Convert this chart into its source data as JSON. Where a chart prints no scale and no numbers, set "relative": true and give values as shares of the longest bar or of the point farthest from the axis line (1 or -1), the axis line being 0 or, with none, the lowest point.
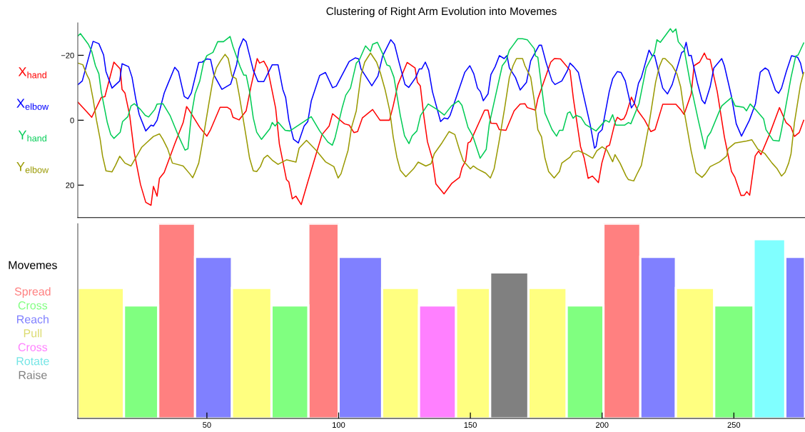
{
  "chart_data": [
    {
      "type": "line",
      "title": "Clustering of Right Arm Evolution into Movemes",
      "legend": "left",
      "line_style": "solid",
      "tick_labels": "y",
      "xlim": [
        1,
        277
      ],
      "ylim": [
        30,
        -30
      ],
      "yticks": [
        -20,
        0,
        20
      ],
      "series": [
        {
          "name": "X$_{hand}$",
          "color": "#ff0000",
          "x": [
            1.1,
            4.1,
            6.3,
            9.9,
            11.3,
            14.7,
            17.1,
            17.8,
            18.9,
            20.7,
            22.5,
            24.8,
            26.8,
            28.8,
            29.7,
            31.1,
            32.0,
            33.8,
            37.8,
            41.0,
            42.3,
            43.1,
            47.3,
            50.0,
            51.4,
            55.0,
            57.7,
            59.0,
            59.9,
            62.2,
            64.9,
            66.7,
            69.1,
            70.0,
            71.6,
            73.0,
            76.1,
            77.5,
            80.2,
            81.1,
            82.4,
            83.8,
            85.8,
            88.3,
            91.9,
            93.7,
            96.4,
            97.7,
            102.2,
            104.0,
            105.8,
            107.2,
            109.0,
            112.9,
            115.7,
            119.3,
            120.7,
            122.5,
            126.0,
            129.0,
            129.9,
            131.0,
            132.3,
            133.7,
            135.5,
            136.9,
            140.0,
            143.0,
            145.9,
            146.8,
            148.2,
            149.1,
            150.0,
            155.4,
            156.7,
            157.8,
            159.9,
            161.0,
            163.5,
            166.6,
            168.9,
            170.7,
            171.6,
            174.7,
            175.6,
            177.8,
            180.5,
            181.9,
            184.2,
            187.8,
            189.1,
            191.8,
            193.2,
            194.7,
            196.3,
            198.6,
            199.9,
            201.7,
            202.8,
            204.9,
            205.8,
            207.1,
            208.2,
            209.1,
            211.1,
            213.6,
            216.1,
            218.5,
            220.1,
            223.0,
            228.0,
            229.8,
            231.1,
            233.8,
            234.9,
            237.0,
            238.8,
            239.8,
            241.0,
            243.7,
            246.4,
            249.1,
            250.4,
            252.7,
            254.0,
            254.9,
            256.0,
            258.1,
            259.4,
            260.3,
            263.5,
            267.3,
            269.8,
            271.6,
            273.0,
            274.8,
            276.5
          ],
          "values": [
            -5.5,
            -2.9,
            -0.9,
            -7.0,
            -7.3,
            -17.9,
            -15.8,
            -9.5,
            -8.4,
            -1.5,
            10.3,
            19.8,
            25.3,
            26.2,
            20.4,
            23.4,
            17.9,
            16.1,
            7.3,
            0.7,
            -4.2,
            -3.3,
            2.2,
            4.9,
            2.9,
            -4.0,
            -4.0,
            -3.3,
            -0.9,
            -0.1,
            -2.9,
            -10.3,
            -19.0,
            -17.6,
            -18.2,
            -16.1,
            -3.7,
            7.3,
            18.3,
            19.0,
            24.2,
            23.4,
            26.0,
            19.0,
            9.2,
            4.4,
            1.8,
            -2.0,
            1.1,
            1.5,
            3.8,
            3.5,
            -0.7,
            -3.3,
            0.0,
            0.0,
            -4.4,
            -11.0,
            -17.8,
            -16.1,
            -11.7,
            -10.6,
            -1.5,
            6.6,
            11.7,
            19.6,
            22.7,
            19.4,
            17.6,
            14.7,
            12.5,
            7.0,
            6.6,
            -3.1,
            -3.1,
            0.9,
            1.0,
            2.9,
            3.1,
            -2.9,
            -5.0,
            -5.1,
            -3.9,
            -3.1,
            -6.6,
            -11.7,
            -17.9,
            -19.0,
            -18.9,
            -15.4,
            -6.6,
            8.1,
            11.7,
            17.9,
            17.2,
            19.2,
            13.2,
            8.1,
            7.7,
            0.7,
            -0.9,
            -0.1,
            -0.4,
            -1.8,
            -7.1,
            -2.9,
            -0.1,
            3.5,
            2.9,
            -4.9,
            -4.9,
            -3.3,
            -1.8,
            -8.1,
            -16.8,
            -17.9,
            -20.7,
            -18.9,
            -18.7,
            -8.8,
            5.1,
            15.8,
            17.6,
            23.2,
            23.1,
            22.0,
            23.1,
            11.0,
            9.5,
            10.6,
            4.4,
            -3.9,
            0.7,
            2.0,
            5.0,
            3.8,
            0.0
          ]
        },
        {
          "name": "X$_{elbow}$",
          "color": "#0000ff",
          "x": [
            1.1,
            2.7,
            6.8,
            9.0,
            10.8,
            11.7,
            14.0,
            16.9,
            17.8,
            20.3,
            21.6,
            23.0,
            24.3,
            26.8,
            28.8,
            29.7,
            31.1,
            33.8,
            35.1,
            37.8,
            39.2,
            41.4,
            42.8,
            44.1,
            46.9,
            48.2,
            50.0,
            51.4,
            52.7,
            55.7,
            59.0,
            61.3,
            62.2,
            63.8,
            64.9,
            67.6,
            69.4,
            71.6,
            74.8,
            77.0,
            78.8,
            79.9,
            81.1,
            82.9,
            84.7,
            86.9,
            88.3,
            89.6,
            92.8,
            95.0,
            97.7,
            99.1,
            104.0,
            106.3,
            107.6,
            108.5,
            112.6,
            114.9,
            116.7,
            119.8,
            121.2,
            123.0,
            125.2,
            126.6,
            129.3,
            130.6,
            131.5,
            132.9,
            134.2,
            135.6,
            138.7,
            140.1,
            141.4,
            142.3,
            147.9,
            149.8,
            151.3,
            152.7,
            153.8,
            154.9,
            156.7,
            157.8,
            159.4,
            161.0,
            162.8,
            163.9,
            164.8,
            167.1,
            168.9,
            171.3,
            172.9,
            176.1,
            177.0,
            178.8,
            181.0,
            182.1,
            184.7,
            186.9,
            187.8,
            189.2,
            191.0,
            195.5,
            197.1,
            197.7,
            198.6,
            200.0,
            202.7,
            204.0,
            205.8,
            207.2,
            208.8,
            211.1,
            212.2,
            213.8,
            214.9,
            217.8,
            219.0,
            219.9,
            223.0,
            224.8,
            226.6,
            230.2,
            231.0,
            231.9,
            232.9,
            233.8,
            236.1,
            237.9,
            239.0,
            241.0,
            242.4,
            245.4,
            246.4,
            249.1,
            250.9,
            252.9,
            255.9,
            258.2,
            260.0,
            261.9,
            263.1,
            265.8,
            267.0,
            268.1,
            269.9,
            271.9,
            274.2,
            275.3,
            276.2
          ],
          "values": [
            -11.0,
            -12.1,
            -24.3,
            -23.6,
            -20.1,
            -15.0,
            -9.9,
            -12.1,
            -17.4,
            -16.5,
            -13.2,
            -6.6,
            -1.8,
            3.3,
            1.5,
            1.8,
            0.0,
            -8.4,
            -11.0,
            -16.3,
            -15.0,
            -7.3,
            -6.6,
            -8.4,
            -17.8,
            -17.9,
            -18.9,
            -18.7,
            -13.9,
            -9.5,
            -11.1,
            -17.2,
            -22.0,
            -25.1,
            -24.2,
            -15.4,
            -11.9,
            -11.9,
            -17.1,
            -17.1,
            -9.5,
            -7.0,
            0.0,
            5.9,
            7.0,
            1.8,
            0.4,
            -5.9,
            -13.8,
            -14.7,
            -10.0,
            -10.5,
            -18.1,
            -19.2,
            -18.9,
            -15.8,
            -10.6,
            -13.6,
            -19.8,
            -24.8,
            -23.4,
            -17.6,
            -11.0,
            -10.1,
            -13.2,
            -15.8,
            -15.8,
            -17.9,
            -15.4,
            -8.8,
            0.4,
            -0.7,
            -0.4,
            -1.5,
            -14.8,
            -16.8,
            -14.3,
            -9.9,
            -8.8,
            -6.0,
            -8.1,
            -14.1,
            -16.5,
            -19.9,
            -19.0,
            -19.9,
            -16.1,
            -13.2,
            -9.3,
            -11.7,
            -18.3,
            -23.1,
            -23.1,
            -17.6,
            -12.1,
            -11.0,
            -12.1,
            -15.4,
            -17.6,
            -16.5,
            -14.7,
            1.5,
            8.6,
            8.1,
            4.0,
            2.9,
            -8.8,
            -12.8,
            -15.0,
            -14.7,
            -12.1,
            -3.8,
            -5.1,
            -11.4,
            -13.2,
            -21.6,
            -19.8,
            -20.0,
            -9.9,
            -8.1,
            -11.0,
            -20.9,
            -21.2,
            -24.0,
            -19.9,
            -20.0,
            -11.7,
            -6.2,
            -5.1,
            -10.3,
            -16.1,
            -19.0,
            -16.8,
            -7.3,
            1.1,
            4.9,
            0.0,
            -5.1,
            -14.8,
            -16.1,
            -15.4,
            -9.2,
            -8.3,
            -9.9,
            -15.0,
            -19.9,
            -19.4,
            -17.6,
            -14.3
          ]
        },
        {
          "name": "Y$_{hand}$",
          "color": "#00cc55",
          "x": [
            1.1,
            2.0,
            5.0,
            6.3,
            7.7,
            9.0,
            9.9,
            12.2,
            13.5,
            14.7,
            17.1,
            18.0,
            20.0,
            21.2,
            22.5,
            24.8,
            26.6,
            27.9,
            30.2,
            31.1,
            33.3,
            36.0,
            39.2,
            41.7,
            42.8,
            44.1,
            45.5,
            47.3,
            48.7,
            50.0,
            52.3,
            54.1,
            56.3,
            58.8,
            59.9,
            62.6,
            64.0,
            64.9,
            66.2,
            67.6,
            68.9,
            70.7,
            73.9,
            74.8,
            75.9,
            77.0,
            79.7,
            81.5,
            86.9,
            89.6,
            92.8,
            95.9,
            97.6,
            98.6,
            101.3,
            102.7,
            104.5,
            106.7,
            107.8,
            110.2,
            112.1,
            112.9,
            114.7,
            116.7,
            118.3,
            119.4,
            121.0,
            123.4,
            125.0,
            126.7,
            127.9,
            129.7,
            131.1,
            134.0,
            137.4,
            140.1,
            142.8,
            145.5,
            146.8,
            149.1,
            150.9,
            153.7,
            156.0,
            157.2,
            159.9,
            162.1,
            163.5,
            164.8,
            166.2,
            168.0,
            169.8,
            171.6,
            174.3,
            174.7,
            175.6,
            178.3,
            181.0,
            182.7,
            183.8,
            185.1,
            186.9,
            187.8,
            189.0,
            190.1,
            192.0,
            193.7,
            197.7,
            201.3,
            202.7,
            204.0,
            205.2,
            208.6,
            210.0,
            210.9,
            214.0,
            216.7,
            218.1,
            219.9,
            220.8,
            222.1,
            225.9,
            226.8,
            228.0,
            228.9,
            231.1,
            233.4,
            236.5,
            239.0,
            240.0,
            241.2,
            244.2,
            245.4,
            249.1,
            250.5,
            253.7,
            254.8,
            256.2,
            258.2,
            261.3,
            262.2,
            264.9,
            267.2,
            268.1,
            271.7,
            273.5,
            274.4,
            276.5
          ],
          "values": [
            -26.0,
            -26.7,
            -23.4,
            -21.2,
            -16.8,
            -14.3,
            -8.8,
            0.7,
            4.4,
            5.6,
            3.7,
            0.4,
            -1.1,
            -4.4,
            -5.1,
            -3.3,
            -1.5,
            -1.0,
            -3.3,
            -5.0,
            -5.1,
            -1.5,
            4.8,
            9.2,
            8.8,
            -1.5,
            -8.1,
            -12.1,
            -17.6,
            -19.9,
            -20.9,
            -24.2,
            -24.2,
            -25.8,
            -22.7,
            -16.5,
            -13.9,
            -13.9,
            -8.8,
            -0.7,
            3.7,
            5.9,
            2.6,
            0.7,
            1.8,
            0.6,
            3.1,
            3.3,
            0.4,
            -1.1,
            3.3,
            6.7,
            7.7,
            5.5,
            -3.7,
            -7.7,
            -9.9,
            -17.6,
            -18.5,
            -22.9,
            -21.2,
            -23.4,
            -24.0,
            -20.5,
            -17.0,
            -16.7,
            -13.2,
            -1.5,
            4.8,
            7.2,
            4.8,
            3.3,
            -1.5,
            -5.0,
            -3.3,
            -1.6,
            -4.4,
            -6.0,
            -4.6,
            2.2,
            4.8,
            11.7,
            9.0,
            1.1,
            -8.8,
            -16.8,
            -18.3,
            -21.6,
            -23.1,
            -25.1,
            -25.1,
            -24.8,
            -22.0,
            -19.8,
            -19.4,
            -2.2,
            2.9,
            4.9,
            3.1,
            3.1,
            -2.2,
            -2.6,
            -0.6,
            -1.5,
            -0.9,
            1.3,
            3.3,
            0.0,
            0.6,
            -1.7,
            1.5,
            1.5,
            0.7,
            1.1,
            -5.1,
            -16.1,
            -18.3,
            -20.9,
            -24.8,
            -24.0,
            -28.2,
            -27.1,
            -28.1,
            -24.2,
            -22.0,
            -11.7,
            0.0,
            8.8,
            5.1,
            3.7,
            -2.2,
            -4.4,
            -7.0,
            -4.4,
            -4.0,
            -2.9,
            -5.0,
            -3.3,
            -0.4,
            2.9,
            6.2,
            6.4,
            2.9,
            -13.2,
            -19.8,
            -20.1,
            -23.8
          ]
        },
        {
          "name": "Y$_{elbow}$",
          "color": "#999900",
          "x": [
            1.1,
            2.9,
            4.5,
            5.4,
            6.8,
            8.1,
            9.5,
            10.4,
            11.7,
            14.0,
            15.3,
            16.9,
            18.9,
            21.2,
            23.4,
            25.2,
            27.0,
            29.7,
            32.0,
            33.3,
            35.1,
            36.9,
            41.0,
            43.5,
            44.6,
            45.5,
            46.9,
            48.2,
            50.9,
            52.3,
            53.6,
            55.1,
            56.9,
            58.1,
            59.5,
            61.1,
            62.2,
            64.9,
            66.2,
            67.6,
            68.9,
            70.3,
            71.6,
            73.0,
            74.8,
            77.0,
            80.2,
            83.8,
            85.0,
            87.8,
            91.4,
            95.0,
            98.2,
            99.8,
            100.9,
            103.6,
            104.9,
            106.7,
            108.5,
            109.9,
            112.1,
            114.4,
            115.8,
            117.6,
            119.4,
            120.7,
            122.1,
            123.4,
            125.5,
            128.4,
            130.2,
            133.1,
            135.1,
            136.3,
            139.2,
            141.9,
            144.1,
            145.9,
            147.3,
            150.0,
            151.1,
            152.7,
            155.8,
            157.6,
            159.0,
            160.8,
            163.0,
            164.8,
            166.2,
            167.5,
            169.8,
            170.7,
            172.9,
            174.3,
            175.6,
            177.0,
            178.3,
            179.7,
            181.8,
            183.8,
            184.7,
            187.8,
            189.0,
            191.0,
            193.7,
            196.4,
            198.0,
            200.0,
            201.8,
            204.0,
            204.9,
            206.8,
            209.1,
            210.0,
            212.0,
            213.1,
            214.9,
            217.6,
            220.3,
            221.7,
            223.0,
            223.9,
            226.6,
            228.4,
            229.8,
            231.1,
            233.8,
            235.6,
            237.9,
            239.2,
            241.0,
            244.6,
            247.3,
            247.8,
            250.5,
            254.8,
            256.8,
            259.1,
            261.8,
            264.5,
            266.3,
            268.1,
            269.4,
            270.8,
            271.7,
            273.0,
            275.3,
            276.5
          ],
          "values": [
            -17.6,
            -17.1,
            -13.9,
            -12.5,
            -6.6,
            0.0,
            5.9,
            11.0,
            15.6,
            15.9,
            13.9,
            11.1,
            13.2,
            14.1,
            11.0,
            8.4,
            7.0,
            5.0,
            4.2,
            5.9,
            8.8,
            13.2,
            14.1,
            16.5,
            17.7,
            16.1,
            13.2,
            7.3,
            -5.9,
            -12.5,
            -16.1,
            -18.2,
            -20.3,
            -19.0,
            -13.6,
            -12.8,
            -8.1,
            5.1,
            11.7,
            15.6,
            15.8,
            14.3,
            11.7,
            10.8,
            12.3,
            13.6,
            12.2,
            12.9,
            8.6,
            6.2,
            9.2,
            12.8,
            14.3,
            17.8,
            16.5,
            9.2,
            2.2,
            -2.9,
            -13.9,
            -17.9,
            -20.7,
            -17.9,
            -14.7,
            -9.5,
            -2.9,
            5.1,
            11.4,
            15.4,
            17.4,
            15.0,
            12.9,
            14.1,
            13.4,
            10.3,
            7.0,
            3.5,
            4.4,
            9.2,
            12.5,
            15.0,
            14.1,
            15.0,
            16.3,
            17.8,
            15.0,
            7.0,
            -3.7,
            -13.2,
            -16.8,
            -19.0,
            -19.0,
            -16.8,
            -13.2,
            -5.9,
            2.9,
            5.1,
            11.7,
            15.8,
            17.8,
            15.8,
            13.2,
            11.4,
            9.9,
            9.4,
            10.4,
            11.7,
            9.4,
            8.2,
            9.2,
            12.8,
            10.6,
            13.2,
            17.2,
            18.3,
            18.7,
            16.8,
            13.9,
            2.2,
            -11.7,
            -16.5,
            -19.0,
            -19.0,
            -16.8,
            -14.3,
            -10.3,
            -2.9,
            9.5,
            16.1,
            17.6,
            16.5,
            14.3,
            12.8,
            11.0,
            8.8,
            7.0,
            6.4,
            6.0,
            8.9,
            10.3,
            13.2,
            14.8,
            17.2,
            16.1,
            13.2,
            10.3,
            0.7,
            -11.0,
            -14.7
          ]
        }
      ]
    },
    {
      "type": "bar",
      "relative": true,
      "legend": "left",
      "legend_title": "Movemes",
      "tick_labels": "x",
      "xlim": [
        1,
        277
      ],
      "xticks": [
        50,
        100,
        150,
        200,
        250
      ],
      "series": [
        {
          "name": "Spread",
          "color": "#ff8080",
          "x": [
            38.5,
            94.25,
            207.5
          ],
          "values": [
            1,
            1,
            1
          ]
        },
        {
          "name": "Cross",
          "color": "#80ff80",
          "x": [
            25,
            81.5,
            193.5,
            250
          ],
          "values": [
            0.58,
            0.58,
            0.58,
            0.58
          ]
        },
        {
          "name": "Reach",
          "color": "#8080ff",
          "x": [
            52.5,
            108.25,
            221.25,
            273.25
          ],
          "values": [
            0.83,
            0.83,
            0.83,
            0.83
          ]
        },
        {
          "name": "Pull",
          "color": "#ffff80",
          "x": [
            9.75,
            67,
            123.5,
            151,
            179.25,
            235.25
          ],
          "values": [
            0.67,
            0.67,
            0.67,
            0.67,
            0.67,
            0.67
          ]
        },
        {
          "name": "Cross",
          "color": "#ff80ff",
          "x": [
            137.5
          ],
          "values": [
            0.58
          ]
        },
        {
          "name": "Rotate",
          "color": "#80ffff",
          "x": [
            263.5
          ],
          "values": [
            0.92
          ]
        },
        {
          "name": "Raise",
          "color": "#808080",
          "x": [
            164.75
          ],
          "values": [
            0.75
          ]
        }
      ]
    }
  ]
}
